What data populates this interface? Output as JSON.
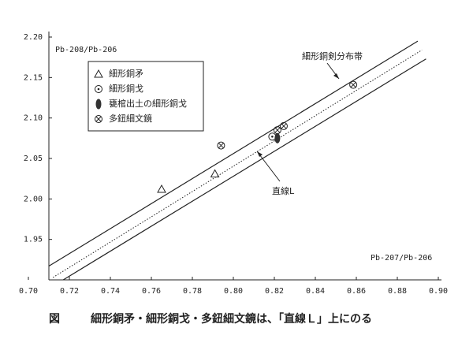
{
  "chart_data": {
    "type": "scatter",
    "caption_label": "図",
    "caption": "細形銅矛・細形銅戈・多鈕細文鏡は、「直線Ｌ」上にのる",
    "ylabel": "Pb-208/Pb-206",
    "xlabel": "Pb-207/Pb-206",
    "annotations": [
      "細形銅剣分布帯",
      "直線L"
    ],
    "xlim": [
      0.7,
      0.9
    ],
    "ylim": [
      1.9,
      2.2
    ],
    "xticks": [
      {
        "value": 0.7,
        "label": "0.70"
      },
      0.72,
      0.74,
      0.76,
      0.78,
      {
        "value": 0.8,
        "label": "0.80"
      },
      0.82,
      0.84,
      0.86,
      0.88,
      {
        "value": 0.9,
        "label": "0.90"
      }
    ],
    "yticks": [
      1.95,
      {
        "value": 2.0,
        "label": "2.00"
      },
      2.05,
      {
        "value": 2.1,
        "label": "2.10"
      },
      2.15,
      {
        "value": 2.2,
        "label": "2.20"
      }
    ],
    "lines": [
      {
        "style": "solid",
        "x": [
          0.71,
          0.89
        ],
        "y": [
          1.917,
          2.195
        ]
      },
      {
        "style": "solid",
        "x": [
          0.717,
          0.894
        ],
        "y": [
          1.9,
          2.173
        ]
      },
      {
        "style": "dotted",
        "x": [
          0.712,
          0.892
        ],
        "y": [
          1.903,
          2.184
        ]
      }
    ],
    "series": [
      {
        "name": "細形銅矛",
        "marker": "triangle",
        "color": "#222",
        "x": [
          0.765,
          0.791
        ],
        "y": [
          2.012,
          2.031
        ]
      },
      {
        "name": "細形銅戈",
        "marker": "dot-circle",
        "color": "#222",
        "x": [
          0.819
        ],
        "y": [
          2.077
        ]
      },
      {
        "name": "甕棺出土の細形銅戈",
        "marker": "filled-ellipse",
        "color": "#333",
        "x": [
          0.8215
        ],
        "y": [
          2.075
        ]
      },
      {
        "name": "多鈕細文鏡",
        "marker": "x-circle",
        "color": "#222",
        "x": [
          0.794,
          0.8215,
          0.8246,
          0.8585
        ],
        "y": [
          2.066,
          2.085,
          2.09,
          2.141
        ]
      }
    ]
  }
}
